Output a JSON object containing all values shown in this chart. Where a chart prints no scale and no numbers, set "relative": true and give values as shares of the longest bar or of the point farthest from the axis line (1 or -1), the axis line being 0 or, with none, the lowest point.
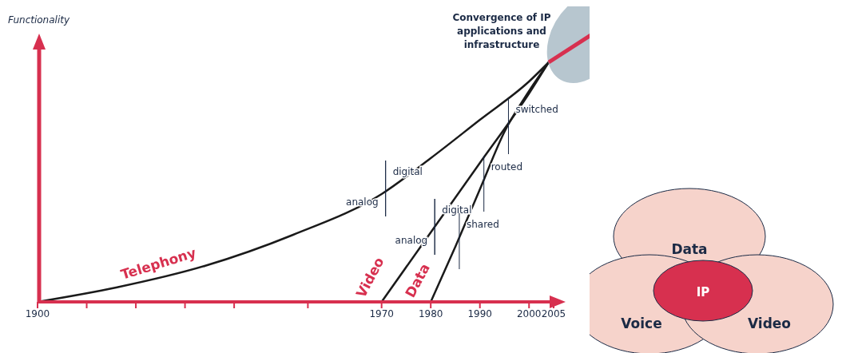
{
  "chart_data": {
    "type": "line",
    "relative": true,
    "title": "Convergence of IP applications and infrastructure",
    "ylabel": "Functionality",
    "xlim": [
      1900,
      2005
    ],
    "xticks": [
      1900,
      {
        "value": 1910,
        "label": null
      },
      {
        "value": 1920,
        "label": null
      },
      {
        "value": 1930,
        "label": null
      },
      {
        "value": 1940,
        "label": null
      },
      {
        "value": 1955,
        "label": null
      },
      1970,
      1980,
      1990,
      2000,
      2005
    ],
    "marker": "none",
    "series": [
      {
        "name": "Telephony",
        "color": "#1a1a1a",
        "x": [
          1900,
          1916,
          1934,
          1952,
          1970,
          1980,
          1990,
          2000,
          2004
        ],
        "values": [
          0,
          0.06,
          0.15,
          0.28,
          0.45,
          0.6,
          0.76,
          0.92,
          1
        ]
      },
      {
        "name": "Video",
        "color": "#1a1a1a",
        "x": [
          1970,
          1980,
          1990,
          2000,
          2004
        ],
        "values": [
          0,
          0.29,
          0.58,
          0.87,
          1
        ]
      },
      {
        "name": "Data",
        "color": "#1a1a1a",
        "x": [
          1980,
          1985,
          1990,
          1995,
          2000,
          2004
        ],
        "values": [
          0,
          0.23,
          0.47,
          0.71,
          0.88,
          1
        ]
      }
    ],
    "annotations": [
      {
        "text": "analog",
        "x": 1970,
        "y": 0.45
      },
      {
        "text": "digital",
        "x": 1970,
        "y": 0.45
      },
      {
        "text": "analog",
        "x": 1980,
        "y": 0.29
      },
      {
        "text": "digital",
        "x": 1980,
        "y": 0.29
      },
      {
        "text": "shared",
        "x": 1985,
        "y": 0.23
      },
      {
        "text": "routed",
        "x": 1990,
        "y": 0.47
      },
      {
        "text": "switched",
        "x": 1995,
        "y": 0.71
      },
      "Data",
      "Voice",
      "Video",
      "IP"
    ]
  }
}
